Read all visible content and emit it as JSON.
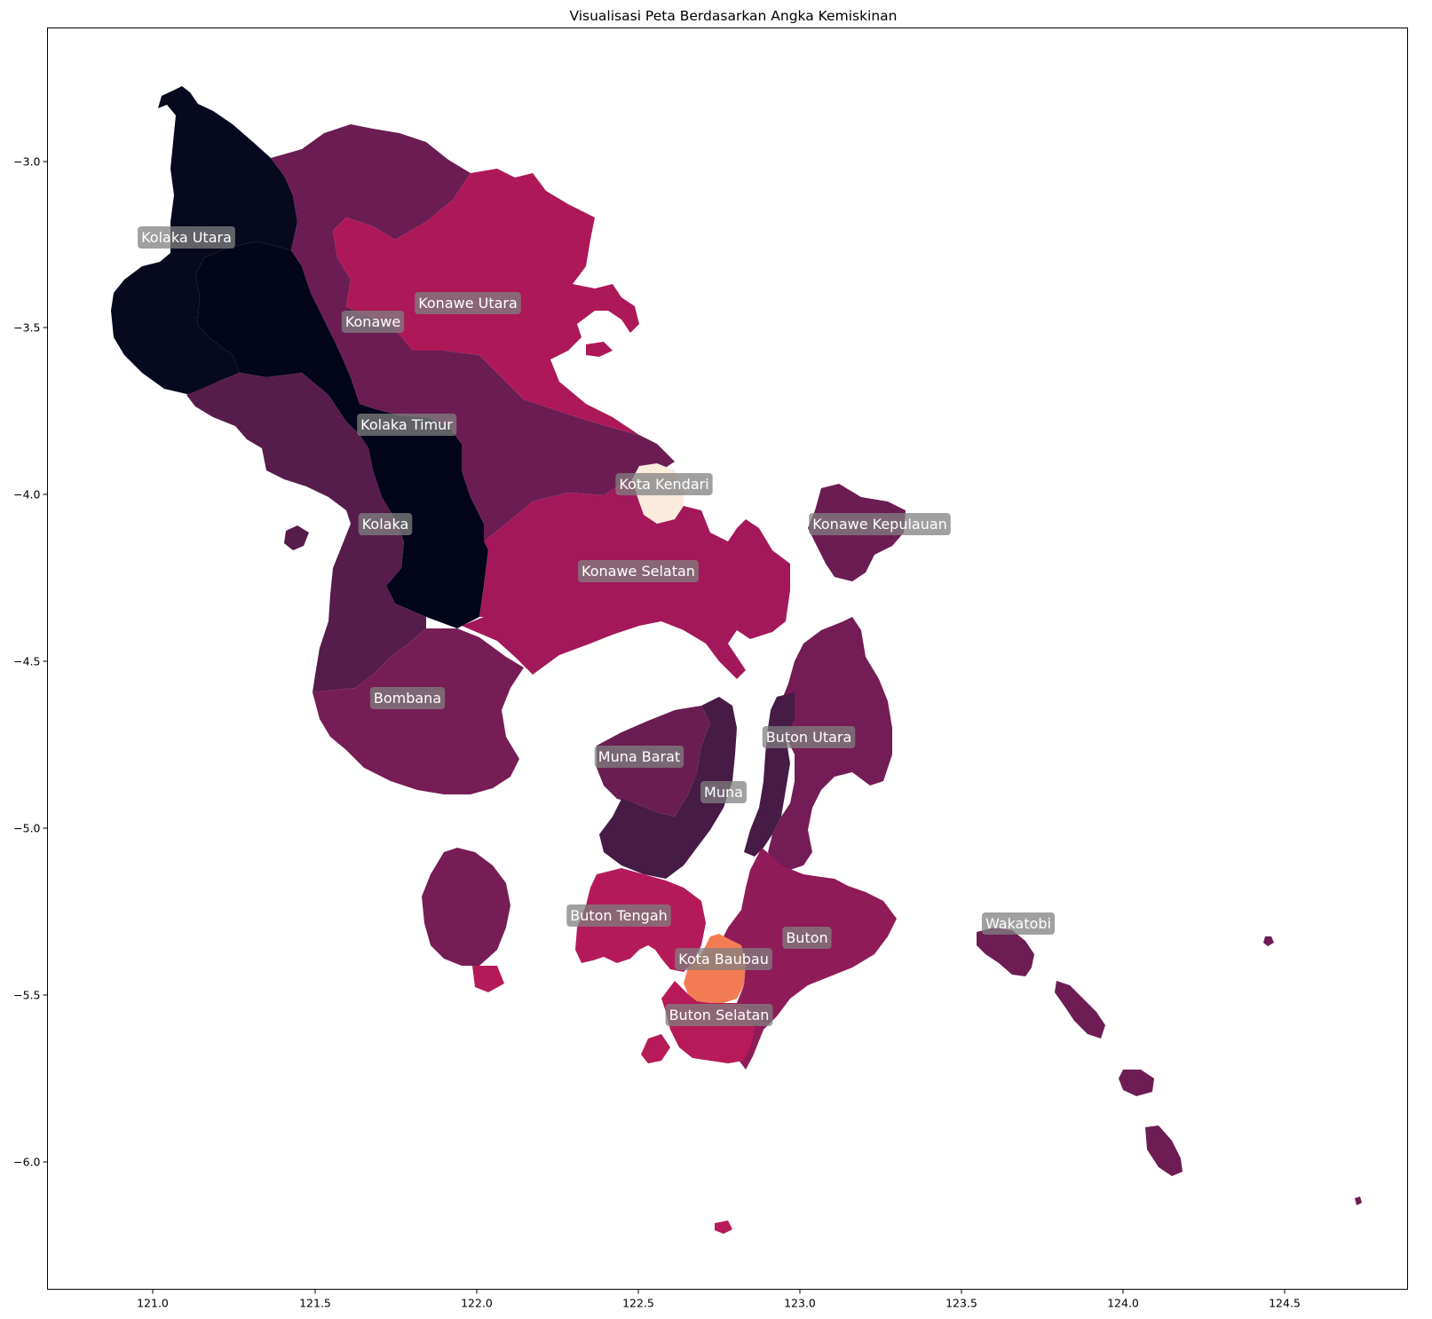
{
  "map": {
    "title": "Visualisasi Peta Berdasarkan Angka Kemiskinan",
    "x_ticks": [
      "121.0",
      "121.5",
      "122.0",
      "122.5",
      "123.0",
      "123.5",
      "124.0",
      "124.5"
    ],
    "y_ticks": [
      "−3.0",
      "−3.5",
      "−4.0",
      "−4.5",
      "−5.0",
      "−5.5",
      "−6.0"
    ],
    "colormap": "rocket",
    "regions": [
      {
        "name": "Kolaka Utara",
        "color": "#07091e"
      },
      {
        "name": "Konawe",
        "color": "#6b1d53"
      },
      {
        "name": "Konawe Utara",
        "color": "#ad1858"
      },
      {
        "name": "Kolaka Timur",
        "color": "#03051a"
      },
      {
        "name": "Kota Kendari",
        "color": "#faebdd"
      },
      {
        "name": "Konawe Kepulauan",
        "color": "#6b1d53"
      },
      {
        "name": "Kolaka",
        "color": "#561c4b"
      },
      {
        "name": "Konawe Selatan",
        "color": "#a3185a"
      },
      {
        "name": "Bombana",
        "color": "#761d56"
      },
      {
        "name": "Muna Barat",
        "color": "#6a1d52"
      },
      {
        "name": "Muna",
        "color": "#461b45"
      },
      {
        "name": "Buton Utara",
        "color": "#741c55"
      },
      {
        "name": "Buton Tengah",
        "color": "#b41a5a"
      },
      {
        "name": "Buton",
        "color": "#8f1b59"
      },
      {
        "name": "Kota Baubau",
        "color": "#f47c55"
      },
      {
        "name": "Buton Selatan",
        "color": "#b61a58"
      },
      {
        "name": "Wakatobi",
        "color": "#6d1d54"
      }
    ]
  }
}
